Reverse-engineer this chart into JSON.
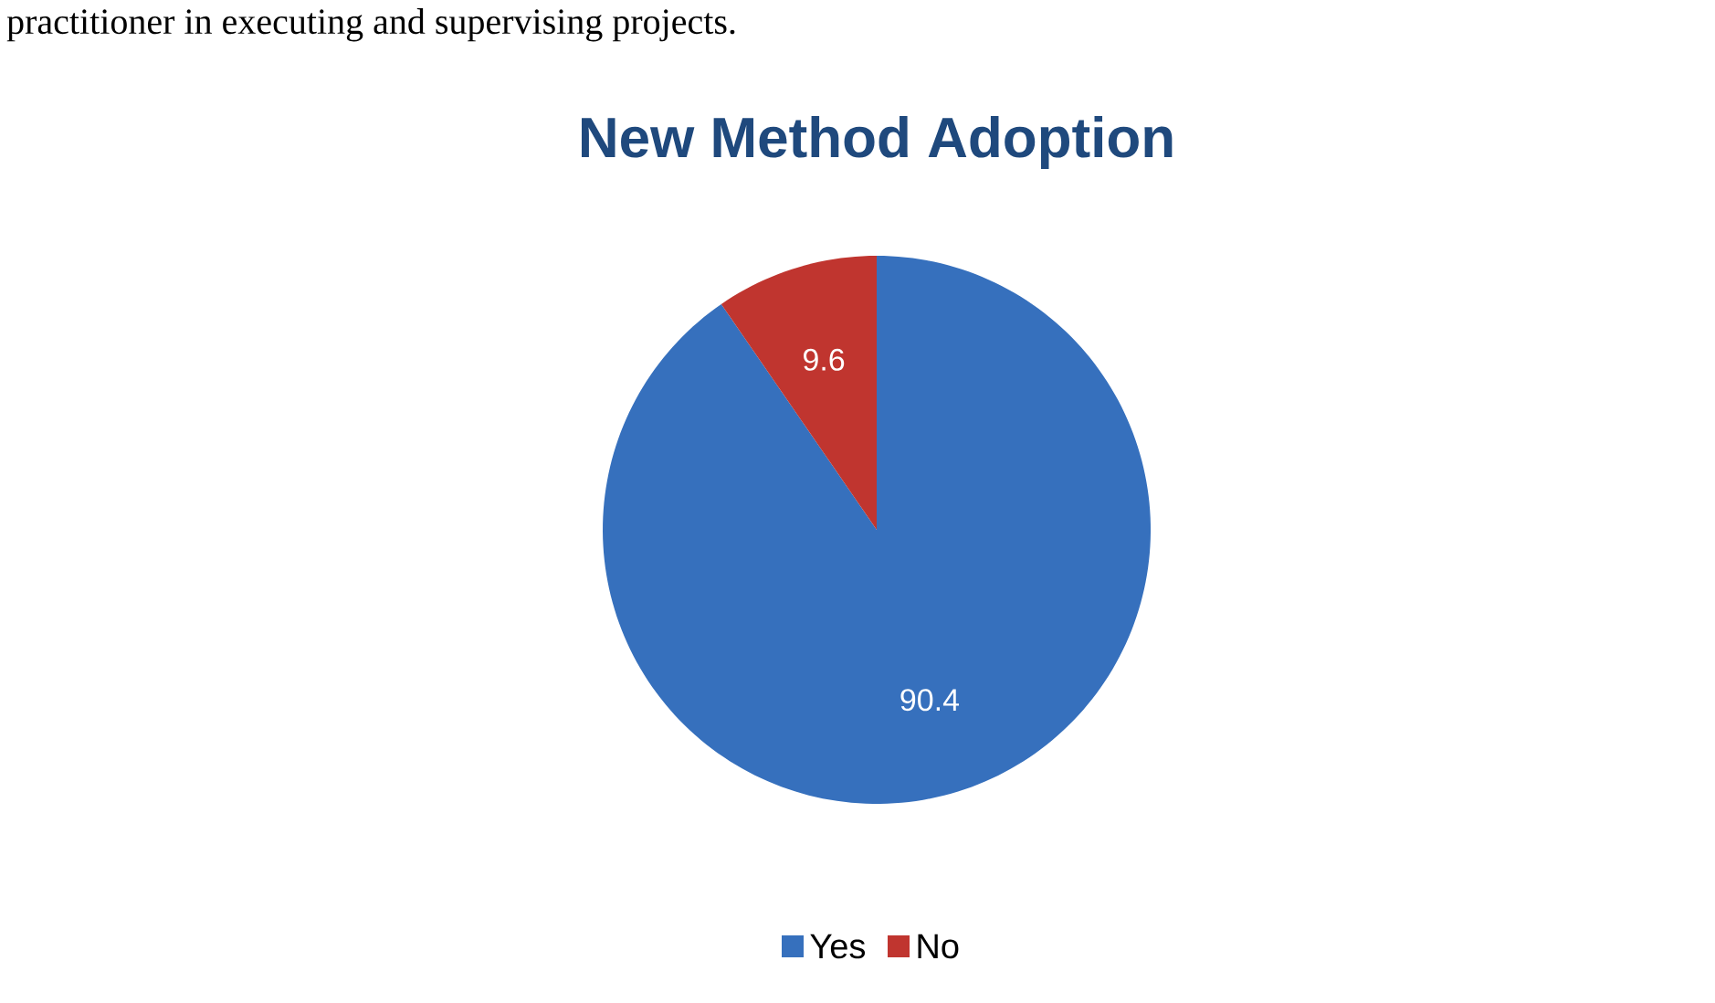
{
  "chart_data": {
    "type": "pie",
    "title": "New Method Adoption",
    "annotations": [
      "practitioner in executing and supervising projects."
    ],
    "categories": [
      "Yes",
      "No"
    ],
    "values": [
      90.4,
      9.6
    ],
    "colors": [
      "#3670bd",
      "#c0352f"
    ],
    "data_labels": true,
    "legend": "bottom"
  }
}
